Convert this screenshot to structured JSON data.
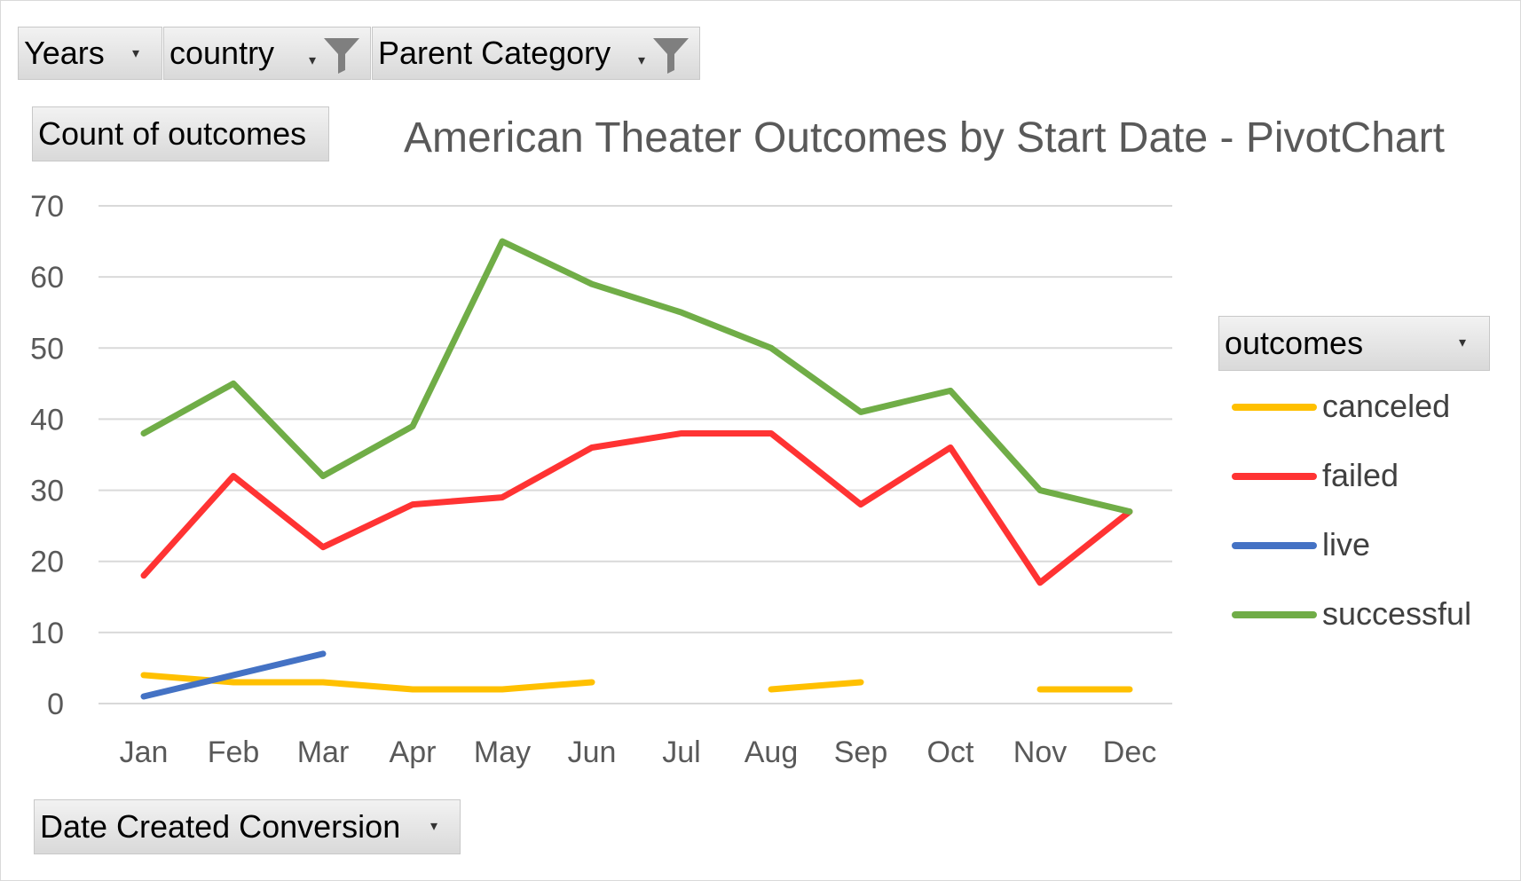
{
  "filters": {
    "years": {
      "label": "Years"
    },
    "country": {
      "label": "country"
    },
    "parent_category": {
      "label": "Parent Category"
    }
  },
  "value_field": {
    "label": "Count of outcomes"
  },
  "axis_field": {
    "label": "Date Created Conversion"
  },
  "legend": {
    "title": "outcomes"
  },
  "colors": {
    "canceled": "#FFC000",
    "failed": "#FF3333",
    "live": "#4472C4",
    "successful": "#70AD47",
    "grid": "#d9d9d9",
    "tick_text": "#595959"
  },
  "chart_data": {
    "type": "line",
    "title": "American Theater Outcomes by Start Date - PivotChart",
    "xlabel": "",
    "ylabel": "",
    "categories": [
      "Jan",
      "Feb",
      "Mar",
      "Apr",
      "May",
      "Jun",
      "Jul",
      "Aug",
      "Sep",
      "Oct",
      "Nov",
      "Dec"
    ],
    "ylim": [
      0,
      70
    ],
    "yticks": [
      0,
      10,
      20,
      30,
      40,
      50,
      60,
      70
    ],
    "grid": true,
    "legend_position": "right",
    "series": [
      {
        "name": "canceled",
        "values": [
          4,
          3,
          3,
          2,
          2,
          3,
          null,
          2,
          3,
          null,
          2,
          2
        ]
      },
      {
        "name": "failed",
        "values": [
          18,
          32,
          22,
          28,
          29,
          36,
          38,
          38,
          28,
          36,
          17,
          27
        ]
      },
      {
        "name": "live",
        "values": [
          1,
          4,
          7,
          null,
          null,
          null,
          null,
          null,
          null,
          null,
          null,
          null
        ]
      },
      {
        "name": "successful",
        "values": [
          38,
          45,
          32,
          39,
          65,
          59,
          55,
          50,
          41,
          44,
          30,
          27
        ]
      }
    ]
  }
}
